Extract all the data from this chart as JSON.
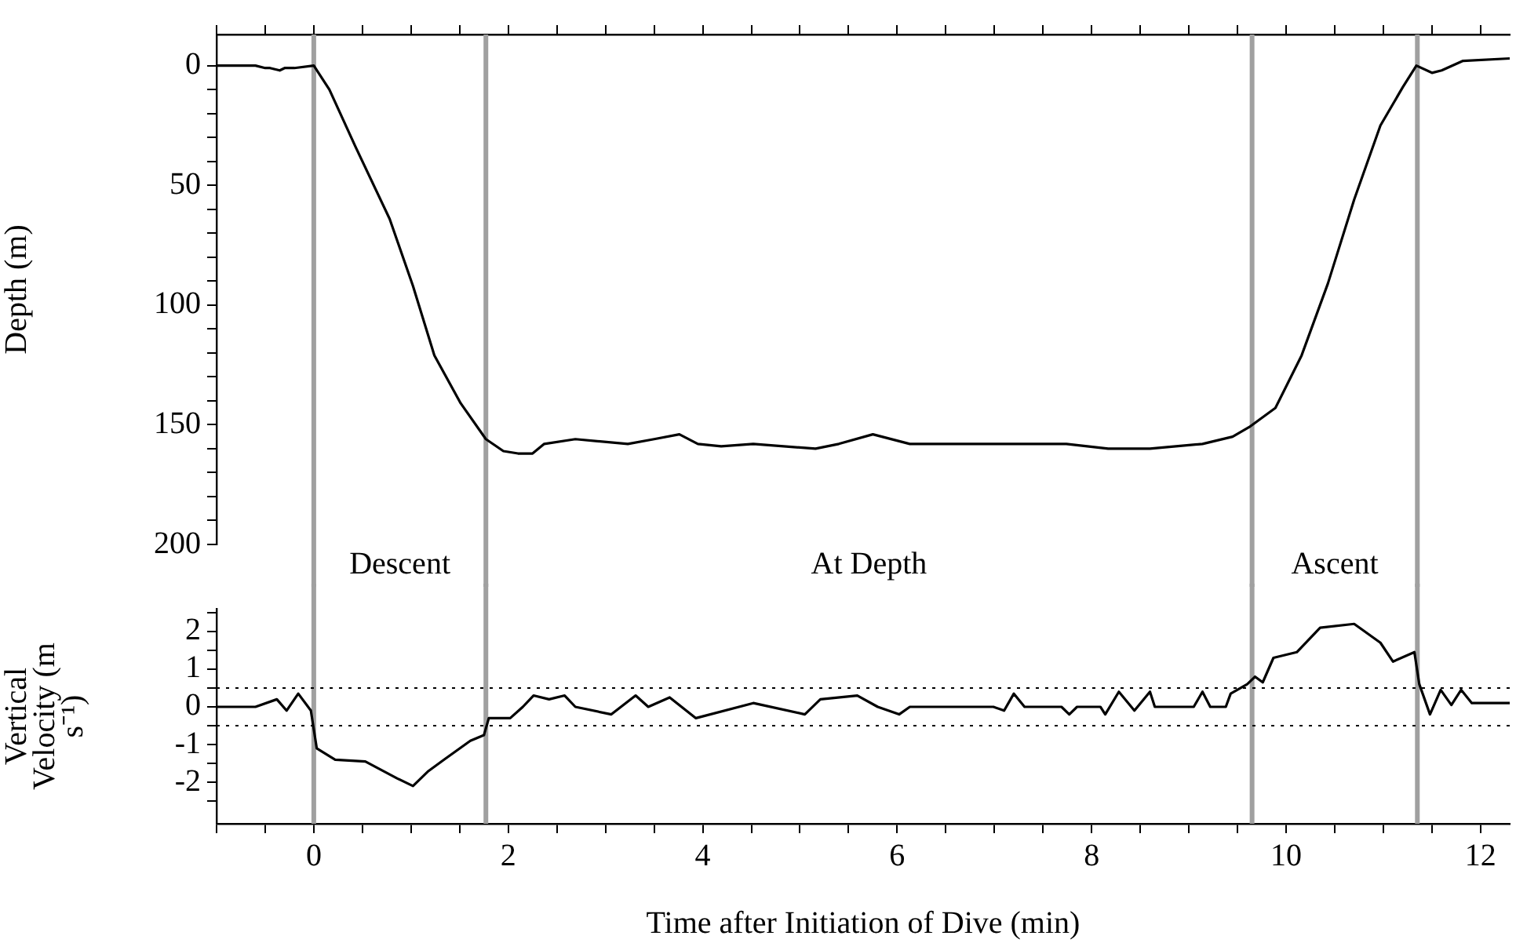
{
  "chart_data": [
    {
      "type": "line",
      "ylabel": "Depth (m)",
      "color": "#000000",
      "tick_labels": "y",
      "grid": false,
      "x": [
        -1,
        -0.6,
        -0.5,
        -0.45,
        -0.35,
        -0.3,
        -0.2,
        0,
        0.16,
        0.43,
        0.78,
        1.02,
        1.24,
        1.51,
        1.77,
        1.95,
        2.1,
        2.25,
        2.37,
        2.69,
        3.23,
        3.5,
        3.76,
        3.95,
        4.19,
        4.52,
        5.16,
        5.4,
        5.75,
        6.13,
        7.74,
        8.17,
        8.6,
        9.14,
        9.45,
        9.62,
        9.89,
        10.16,
        10.43,
        10.7,
        10.97,
        11.2,
        11.34,
        11.5,
        11.6,
        11.82,
        12.3
      ],
      "values": [
        0,
        0,
        1,
        1,
        2,
        1,
        1,
        0,
        10,
        34,
        64,
        92,
        121,
        141,
        156,
        161,
        162,
        162,
        158,
        156,
        158,
        156,
        154,
        158,
        159,
        158,
        160,
        158,
        154,
        158,
        158,
        160,
        160,
        158,
        155,
        151,
        143,
        121,
        91,
        56,
        25,
        9,
        0,
        3,
        2,
        -2,
        -3
      ],
      "xlim": [
        -1,
        12.3
      ],
      "xticks": [
        {
          "value": -1,
          "label": null
        },
        {
          "value": -0.5,
          "label": null
        },
        0,
        {
          "value": 0.5,
          "label": null
        },
        {
          "value": 1,
          "label": null
        },
        {
          "value": 1.5,
          "label": null
        },
        2,
        {
          "value": 2.5,
          "label": null
        },
        {
          "value": 3,
          "label": null
        },
        {
          "value": 3.5,
          "label": null
        },
        4,
        {
          "value": 4.5,
          "label": null
        },
        {
          "value": 5,
          "label": null
        },
        {
          "value": 5.5,
          "label": null
        },
        6,
        {
          "value": 6.5,
          "label": null
        },
        {
          "value": 7,
          "label": null
        },
        {
          "value": 7.5,
          "label": null
        },
        8,
        {
          "value": 8.5,
          "label": null
        },
        {
          "value": 9,
          "label": null
        },
        {
          "value": 9.5,
          "label": null
        },
        10,
        {
          "value": 10.5,
          "label": null
        },
        {
          "value": 11,
          "label": null
        },
        {
          "value": 11.5,
          "label": null
        },
        12
      ],
      "ylim": [
        200,
        -13
      ],
      "yticks": [
        0,
        {
          "value": 10,
          "label": null
        },
        {
          "value": 20,
          "label": null
        },
        {
          "value": 30,
          "label": null
        },
        {
          "value": 40,
          "label": null
        },
        50,
        {
          "value": 60,
          "label": null
        },
        {
          "value": 70,
          "label": null
        },
        {
          "value": 80,
          "label": null
        },
        {
          "value": 90,
          "label": null
        },
        100,
        {
          "value": 110,
          "label": null
        },
        {
          "value": 120,
          "label": null
        },
        {
          "value": 130,
          "label": null
        },
        {
          "value": 140,
          "label": null
        },
        150,
        {
          "value": 160,
          "label": null
        },
        {
          "value": 170,
          "label": null
        },
        {
          "value": 180,
          "label": null
        },
        {
          "value": 190,
          "label": null
        },
        200
      ],
      "ref_lines": [
        {
          "axis": "x",
          "value": 0,
          "color": "#a0a0a0"
        },
        {
          "axis": "x",
          "value": 1.77,
          "color": "#a0a0a0"
        },
        {
          "axis": "x",
          "value": 9.65,
          "color": "#a0a0a0"
        },
        {
          "axis": "x",
          "value": 11.35,
          "color": "#a0a0a0"
        }
      ],
      "annotations": [
        "Descent",
        "At Depth",
        "Ascent"
      ]
    },
    {
      "type": "line",
      "ylabel": "Vertical Velocity (m s⁻¹)",
      "xlabel": "Time after Initiation of Dive (min)",
      "color": "#000000",
      "grid": false,
      "x": [
        -1,
        -0.6,
        -0.38,
        -0.28,
        -0.16,
        -0.03,
        0.03,
        0.22,
        0.53,
        0.86,
        1.02,
        1.18,
        1.34,
        1.61,
        1.75,
        1.8,
        2.02,
        2.15,
        2.26,
        2.42,
        2.58,
        2.69,
        3.06,
        3.31,
        3.44,
        3.66,
        3.93,
        4.52,
        5.05,
        5.21,
        5.59,
        5.8,
        6.02,
        6.13,
        6.99,
        7.1,
        7.2,
        7.31,
        7.69,
        7.77,
        7.85,
        8.09,
        8.14,
        8.28,
        8.44,
        8.6,
        8.65,
        9.05,
        9.14,
        9.22,
        9.38,
        9.43,
        9.6,
        9.68,
        9.76,
        9.87,
        10.11,
        10.35,
        10.7,
        10.97,
        11.1,
        11.32,
        11.37,
        11.48,
        11.59,
        11.7,
        11.8,
        11.91,
        12.3
      ],
      "values": [
        0,
        0,
        0.2,
        -0.1,
        0.35,
        -0.1,
        -1.1,
        -1.4,
        -1.45,
        -1.9,
        -2.1,
        -1.7,
        -1.4,
        -0.9,
        -0.75,
        -0.3,
        -0.3,
        0,
        0.3,
        0.2,
        0.3,
        0,
        -0.2,
        0.3,
        0,
        0.25,
        -0.3,
        0.1,
        -0.2,
        0.2,
        0.3,
        0,
        -0.2,
        0,
        0,
        -0.1,
        0.35,
        0,
        0,
        -0.2,
        0,
        0,
        -0.2,
        0.4,
        -0.1,
        0.4,
        0,
        0,
        0.4,
        0,
        0,
        0.35,
        0.6,
        0.8,
        0.65,
        1.3,
        1.45,
        2.1,
        2.2,
        1.7,
        1.2,
        1.45,
        0.6,
        -0.2,
        0.45,
        0.05,
        0.45,
        0.1,
        0.1
      ],
      "xlim": [
        -1,
        12.3
      ],
      "xticks": [
        {
          "value": -1,
          "label": null
        },
        {
          "value": -0.5,
          "label": null
        },
        0,
        {
          "value": 0.5,
          "label": null
        },
        {
          "value": 1,
          "label": null
        },
        {
          "value": 1.5,
          "label": null
        },
        2,
        {
          "value": 2.5,
          "label": null
        },
        {
          "value": 3,
          "label": null
        },
        {
          "value": 3.5,
          "label": null
        },
        4,
        {
          "value": 4.5,
          "label": null
        },
        {
          "value": 5,
          "label": null
        },
        {
          "value": 5.5,
          "label": null
        },
        6,
        {
          "value": 6.5,
          "label": null
        },
        {
          "value": 7,
          "label": null
        },
        {
          "value": 7.5,
          "label": null
        },
        8,
        {
          "value": 8.5,
          "label": null
        },
        {
          "value": 9,
          "label": null
        },
        {
          "value": 9.5,
          "label": null
        },
        10,
        {
          "value": 10.5,
          "label": null
        },
        {
          "value": 11,
          "label": null
        },
        {
          "value": 11.5,
          "label": null
        },
        12
      ],
      "ylim": [
        -3.1,
        2.6
      ],
      "yticks": [
        {
          "value": -2.5,
          "label": null
        },
        -2,
        {
          "value": -1.5,
          "label": null
        },
        -1,
        {
          "value": -0.5,
          "label": null
        },
        0,
        {
          "value": 0.5,
          "label": null
        },
        1,
        {
          "value": 1.5,
          "label": null
        },
        2,
        {
          "value": 2.5,
          "label": null
        }
      ],
      "ref_lines": [
        {
          "axis": "x",
          "value": 0,
          "color": "#a0a0a0"
        },
        {
          "axis": "x",
          "value": 1.77,
          "color": "#a0a0a0"
        },
        {
          "axis": "x",
          "value": 9.65,
          "color": "#a0a0a0"
        },
        {
          "axis": "x",
          "value": 11.35,
          "color": "#a0a0a0"
        },
        {
          "axis": "y",
          "value": 0.5,
          "color": "#000000",
          "line_style": "dotted"
        },
        {
          "axis": "y",
          "value": -0.5,
          "color": "#000000",
          "line_style": "dotted"
        }
      ]
    }
  ]
}
